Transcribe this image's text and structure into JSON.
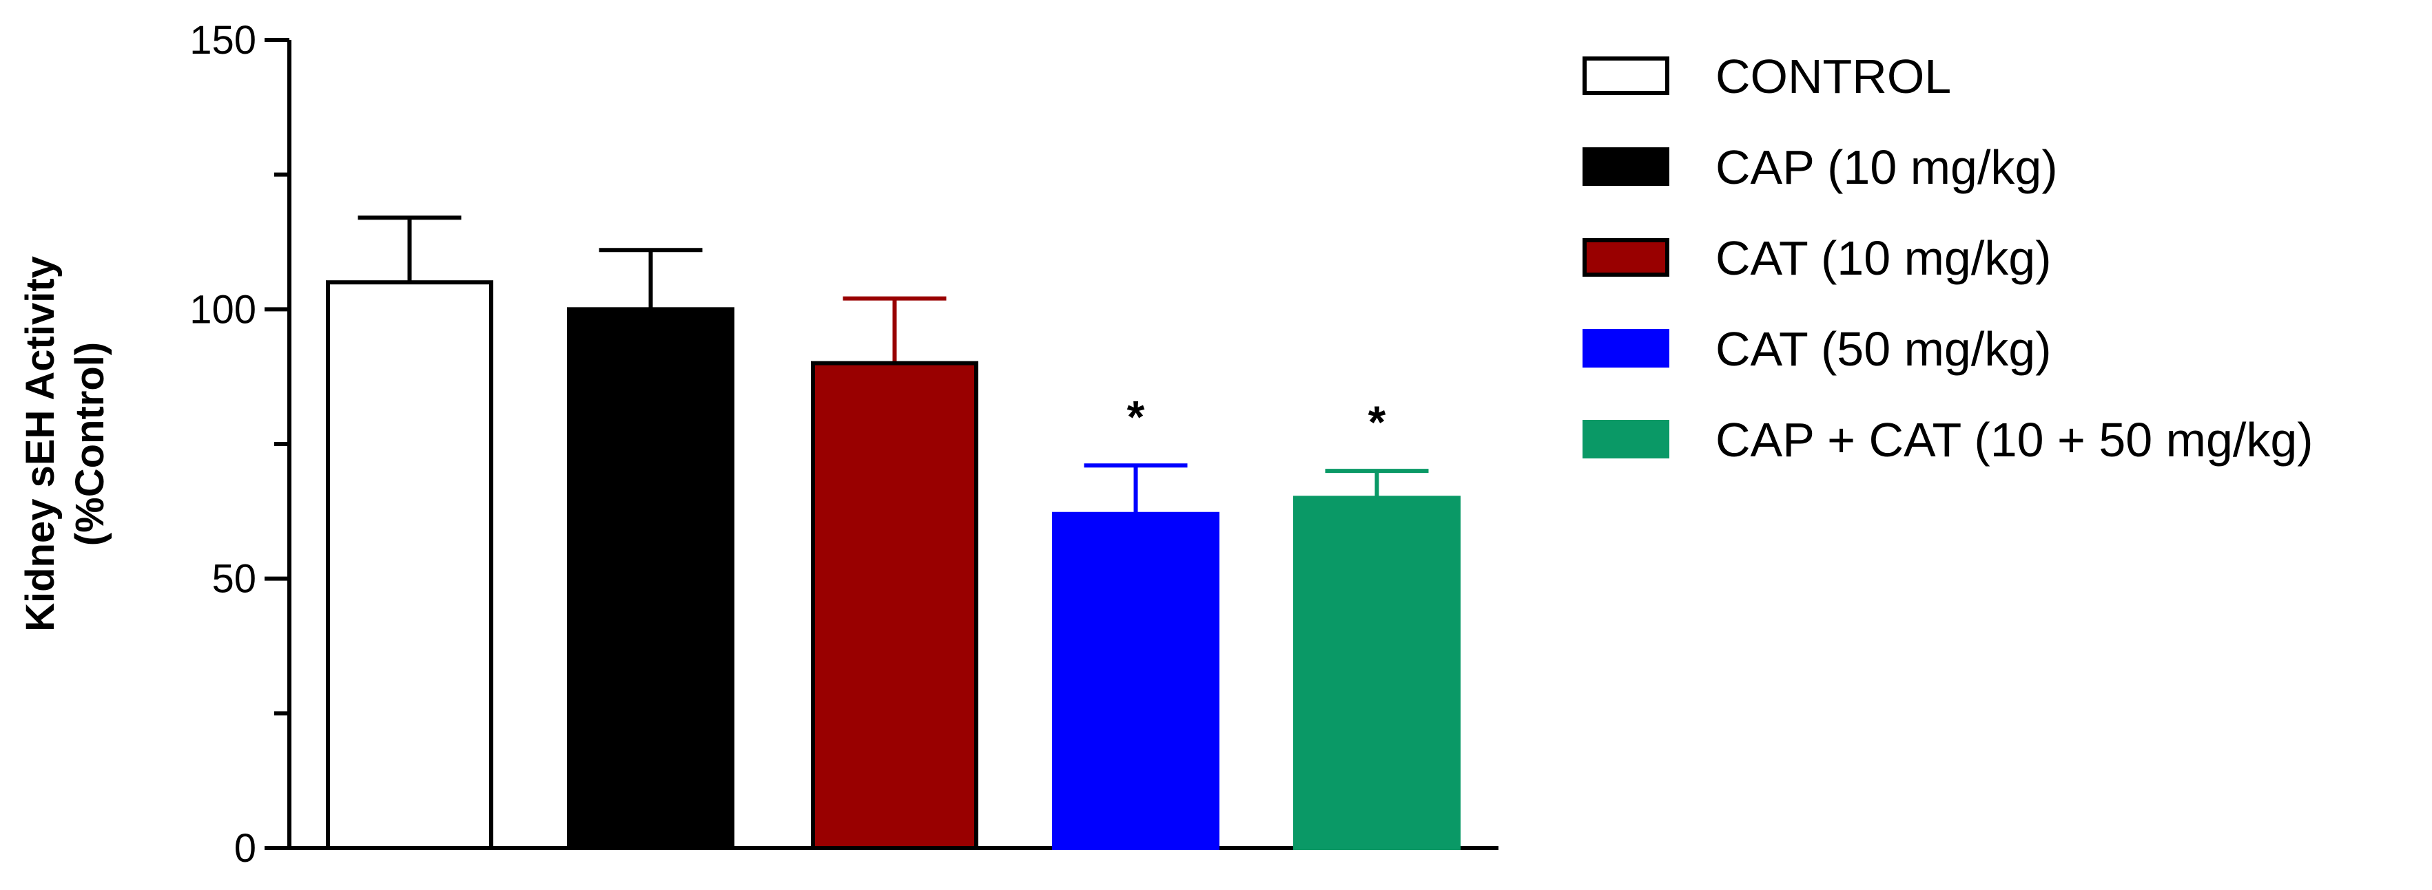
{
  "chart_data": {
    "type": "bar",
    "title": "",
    "xlabel": "",
    "ylabel_lines": [
      "Kidney sEH Activity",
      "(%Control)"
    ],
    "ylim": [
      0,
      150
    ],
    "yticks": [
      0,
      50,
      100,
      150
    ],
    "yticks_minor": [
      25,
      75,
      125
    ],
    "grid": false,
    "legend_position": "right",
    "series": [
      {
        "name": "CONTROL",
        "value": 105,
        "error": 12,
        "color": "#ffffff",
        "edge": "#000000",
        "significance": ""
      },
      {
        "name": "CAP (10 mg/kg)",
        "value": 100,
        "error": 11,
        "color": "#000000",
        "edge": "#000000",
        "significance": ""
      },
      {
        "name": "CAT (10 mg/kg)",
        "value": 90,
        "error": 12,
        "color": "#990000",
        "edge": "#000000",
        "significance": ""
      },
      {
        "name": "CAT (50 mg/kg)",
        "value": 62,
        "error": 9,
        "color": "#0000ff",
        "edge": "#0000ff",
        "significance": "*"
      },
      {
        "name": "CAP + CAT (10 + 50 mg/kg)",
        "value": 65,
        "error": 5,
        "color": "#0a9966",
        "edge": "#0a9966",
        "significance": "*"
      }
    ]
  }
}
